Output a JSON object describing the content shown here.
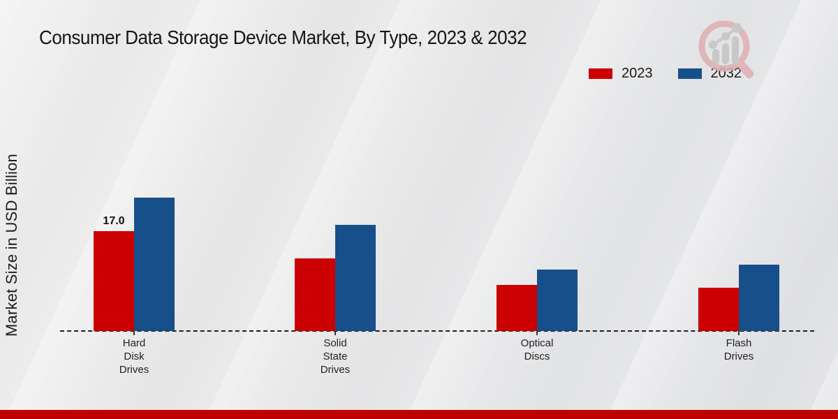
{
  "title": "Consumer Data Storage Device Market, By Type, 2023 & 2032",
  "y_axis_label": "Market Size in USD Billion",
  "legend": [
    {
      "label": "2023",
      "color": "#CC0101"
    },
    {
      "label": "2032",
      "color": "#174F8B"
    }
  ],
  "colors": {
    "series_2023": "#CC0101",
    "series_2032": "#174F8B",
    "bottom_band": "#BE0000",
    "baseline": "#1F1F1F"
  },
  "branding": {
    "logo_icon": "magnifier-bar-chart-logo"
  },
  "chart_data": {
    "type": "bar",
    "title": "Consumer Data Storage Device Market, By Type, 2023 & 2032",
    "xlabel": "",
    "ylabel": "Market Size in USD Billion",
    "categories": [
      "Hard Disk Drives",
      "Solid State Drives",
      "Optical Discs",
      "Flash Drives"
    ],
    "category_label_lines": [
      "Hard\nDisk\nDrives",
      "Solid\nState\nDrives",
      "Optical\nDiscs",
      "Flash\nDrives"
    ],
    "series": [
      {
        "name": "2023",
        "color": "#CC0101",
        "values": [
          17.0,
          12.4,
          7.9,
          7.4
        ]
      },
      {
        "name": "2032",
        "color": "#174F8B",
        "values": [
          22.7,
          18.1,
          10.5,
          11.3
        ]
      }
    ],
    "bar_labels": [
      [
        "17.0",
        "",
        "",
        ""
      ],
      [
        "",
        "",
        "",
        ""
      ]
    ],
    "ylim": [
      0,
      25
    ],
    "grid": false,
    "legend_position": "top-right",
    "baseline_style": "dashed",
    "y_axis_ticks_visible": false
  }
}
